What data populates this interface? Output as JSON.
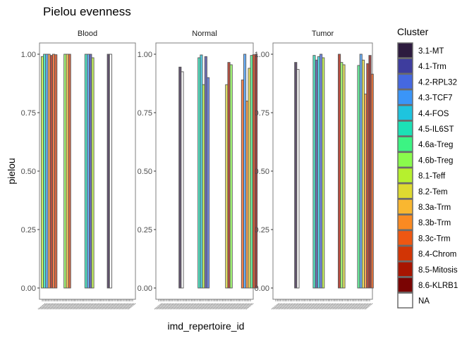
{
  "chart_data": {
    "type": "bar",
    "title": "Pielou evenness",
    "xlabel": "imd_repertoire_id",
    "ylabel": "pielou",
    "ylim": [
      0,
      1.05
    ],
    "yticks": [
      "0.00",
      "0.25",
      "0.50",
      "0.75",
      "1.00"
    ],
    "ytick_values": [
      0,
      0.25,
      0.5,
      0.75,
      1.0
    ],
    "grid": false,
    "legend": {
      "title": "Cluster",
      "placement": "right",
      "entries": [
        {
          "label": "3.1-MT",
          "color": "#2D1B3F"
        },
        {
          "label": "4.1-Trm",
          "color": "#3E3D9E"
        },
        {
          "label": "4.2-RPL32",
          "color": "#4568E0"
        },
        {
          "label": "4.3-TCF7",
          "color": "#3A95F8"
        },
        {
          "label": "4.4-FOS",
          "color": "#1EC4DE"
        },
        {
          "label": "4.5-IL6ST",
          "color": "#1CE1B6"
        },
        {
          "label": "4.6a-Treg",
          "color": "#3CF483"
        },
        {
          "label": "4.6b-Treg",
          "color": "#8AFC4C"
        },
        {
          "label": "8.1-Teff",
          "color": "#B6F02E"
        },
        {
          "label": "8.2-Tem",
          "color": "#DEDA31"
        },
        {
          "label": "8.3a-Trm",
          "color": "#F9B730"
        },
        {
          "label": "8.3b-Trm",
          "color": "#FB8A22"
        },
        {
          "label": "8.3c-Trm",
          "color": "#EE5712"
        },
        {
          "label": "8.4-Chrom",
          "color": "#D23505"
        },
        {
          "label": "8.5-Mitosis",
          "color": "#A81501"
        },
        {
          "label": "8.6-KLRB1",
          "color": "#7A0403"
        },
        {
          "label": "NA",
          "color": "#FFFFFF"
        }
      ]
    },
    "bar_alpha": 0.75,
    "facets": [
      {
        "name": "Blood",
        "groups": [
          {
            "bars": [
              {
                "cluster": "8.1-Teff",
                "value": 0.99
              },
              {
                "cluster": "4.5-IL6ST",
                "value": 1.0
              },
              {
                "cluster": "4.3-TCF7",
                "value": 1.0
              },
              {
                "cluster": "8.3b-Trm",
                "value": 1.0
              },
              {
                "cluster": "8.5-Mitosis",
                "value": 0.995
              },
              {
                "cluster": "8.3c-Trm",
                "value": 1.0
              },
              {
                "cluster": "8.4-Chrom",
                "value": 0.998
              }
            ]
          },
          {
            "bars": [
              {
                "cluster": "4.6b-Treg",
                "value": 1.0
              },
              {
                "cluster": "8.3a-Trm",
                "value": 1.0
              },
              {
                "cluster": "8.4-Chrom",
                "value": 1.0
              }
            ]
          },
          {
            "bars": [
              {
                "cluster": "4.5-IL6ST",
                "value": 1.0
              },
              {
                "cluster": "4.3-TCF7",
                "value": 1.0
              },
              {
                "cluster": "4.1-Trm",
                "value": 1.0
              },
              {
                "cluster": "8.1-Teff",
                "value": 0.985
              }
            ]
          },
          {
            "bars": [
              {
                "cluster": "3.1-MT",
                "value": 1.0
              },
              {
                "cluster": "NA",
                "value": 1.0
              }
            ]
          }
        ]
      },
      {
        "name": "Normal",
        "groups": [
          {
            "bars": [
              {
                "cluster": "3.1-MT",
                "value": 0.945
              },
              {
                "cluster": "NA",
                "value": 0.925
              }
            ]
          },
          {
            "bars": [
              {
                "cluster": "4.5-IL6ST",
                "value": 0.985
              },
              {
                "cluster": "4.4-FOS",
                "value": 0.997
              },
              {
                "cluster": "8.1-Teff",
                "value": 0.87
              },
              {
                "cluster": "4.1-Trm",
                "value": 0.99
              },
              {
                "cluster": "4.2-RPL32",
                "value": 0.9
              }
            ]
          },
          {
            "bars": [
              {
                "cluster": "8.2-Tem",
                "value": 0.87
              },
              {
                "cluster": "8.5-Mitosis",
                "value": 0.965
              },
              {
                "cluster": "4.6b-Treg",
                "value": 0.955
              }
            ]
          },
          {
            "bars": [
              {
                "cluster": "8.3c-Trm",
                "value": 0.89
              },
              {
                "cluster": "4.3-TCF7",
                "value": 1.0
              },
              {
                "cluster": "8.3b-Trm",
                "value": 0.8
              },
              {
                "cluster": "8.2-Tem",
                "value": 0.94
              },
              {
                "cluster": "4.6a-Treg",
                "value": 0.995
              },
              {
                "cluster": "8.4-Chrom",
                "value": 0.998
              },
              {
                "cluster": "8.6-KLRB1",
                "value": 1.0
              }
            ]
          }
        ]
      },
      {
        "name": "Tumor",
        "groups": [
          {
            "bars": [
              {
                "cluster": "3.1-MT",
                "value": 0.965
              },
              {
                "cluster": "NA",
                "value": 0.935
              }
            ]
          },
          {
            "bars": [
              {
                "cluster": "4.5-IL6ST",
                "value": 0.995
              },
              {
                "cluster": "4.1-Trm",
                "value": 0.975
              },
              {
                "cluster": "4.4-FOS",
                "value": 0.99
              },
              {
                "cluster": "4.2-RPL32",
                "value": 1.0
              },
              {
                "cluster": "8.1-Teff",
                "value": 0.985
              }
            ]
          },
          {
            "bars": [
              {
                "cluster": "8.5-Mitosis",
                "value": 1.0
              },
              {
                "cluster": "4.6b-Treg",
                "value": 0.965
              },
              {
                "cluster": "8.2-Tem",
                "value": 0.955
              }
            ]
          },
          {
            "bars": [
              {
                "cluster": "4.6a-Treg",
                "value": 0.952
              },
              {
                "cluster": "4.3-TCF7",
                "value": 1.0
              },
              {
                "cluster": "8.2-Tem",
                "value": 0.975
              },
              {
                "cluster": "8.3b-Trm",
                "value": 0.83
              },
              {
                "cluster": "8.5-Mitosis",
                "value": 0.96
              },
              {
                "cluster": "8.6-KLRB1",
                "value": 0.995
              },
              {
                "cluster": "8.3c-Trm",
                "value": 0.915
              }
            ]
          }
        ]
      }
    ]
  }
}
